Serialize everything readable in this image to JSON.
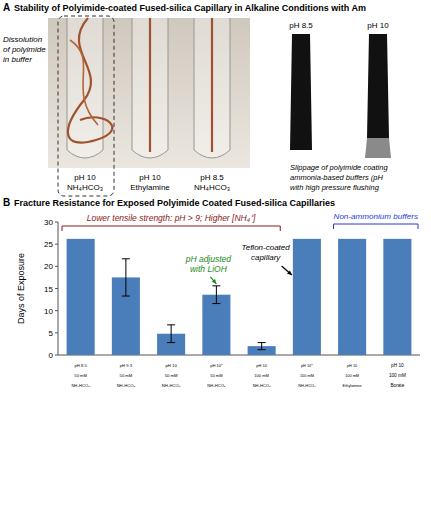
{
  "panel_a": {
    "letter": "A",
    "title": "Stability of Polyimide-coated Fused-silica Capillary in Alkaline Conditions with Am",
    "note_left": [
      "Dissolution",
      "of polyimide",
      "in buffer"
    ],
    "tubes": [
      [
        "pH 10",
        "NH₄HCO₃"
      ],
      [
        "pH 10",
        "Ethylamine"
      ],
      [
        "pH 8.5",
        "NH₄HCO₃"
      ]
    ],
    "ends": [
      "pH 8.5",
      "pH 10"
    ],
    "note_right": [
      "Slippage of polyimide coating",
      "ammonia-based buffers (pH",
      "with high pressure flushing"
    ]
  },
  "chart_data": {
    "type": "bar",
    "letter": "B",
    "title": "Fracture Resistance for Exposed Polyimide Coated Fused-silica Capillaries",
    "y_label": "Days of Exposure",
    "categories": [
      "pH 8.5\n50 mM\nNH₄HCO₃",
      "pH 9.3\n50 mM\nNH₄HCO₃",
      "pH 10\n50 mM\nNH₄HCO₃",
      "pH 10*\n50 mM\nNH₄HCO₃",
      "pH 10\n100 mM\nNH₄HCO₃",
      "pH 10*\n100 mM\nNH₄HCO₃",
      "pH 10\n100 mM\nEthylamine",
      "pH 10\n100 mM\nBorate"
    ],
    "values": [
      26.2,
      17.5,
      4.8,
      13.6,
      2.0,
      26.2,
      26.2,
      26.2
    ],
    "errors": [
      null,
      4.2,
      2.0,
      2.0,
      0.8,
      null,
      null,
      null
    ],
    "color": "#4a7ebb",
    "ylim": [
      0,
      30
    ],
    "yticks": [
      0,
      5,
      10,
      15,
      20,
      25,
      30
    ],
    "annotations": [
      "Lower tensile strength: pH > 9; Higher [NH₄⁺]",
      "Non-ammonium buffers",
      "pH adjusted with LiOH",
      "Teflon-coated capillary"
    ]
  }
}
